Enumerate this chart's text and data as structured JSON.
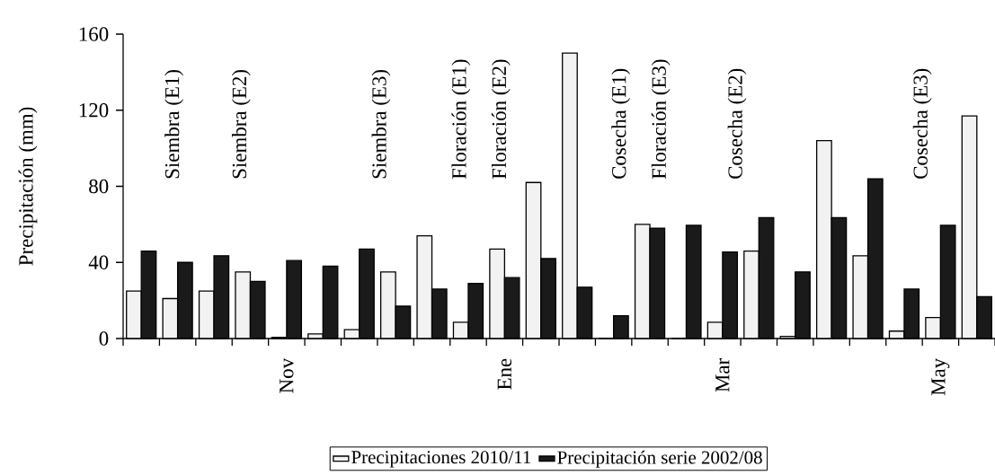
{
  "chart_data": {
    "type": "bar",
    "ylabel": "Precipitación (mm)",
    "categories": [
      null,
      null,
      null,
      null,
      "Nov",
      null,
      null,
      null,
      null,
      null,
      "Ene",
      null,
      null,
      null,
      null,
      null,
      "Mar",
      null,
      null,
      null,
      null,
      null,
      "May",
      null
    ],
    "series": [
      {
        "name": "Precipitaciones 2010/11",
        "color": "#f2f2f2",
        "values": [
          25,
          21,
          25,
          35,
          0.6,
          2.4,
          4.7,
          35,
          54,
          8.6,
          47,
          82,
          150,
          0,
          60,
          0,
          8.6,
          46,
          1.1,
          104,
          43.5,
          3.9,
          11,
          117
        ]
      },
      {
        "name": "Precipitación serie 2002/08",
        "color": "#1a1a1a",
        "values": [
          46,
          40,
          43.5,
          30,
          41,
          38,
          47,
          17,
          26,
          29,
          32,
          42,
          27,
          12,
          58,
          59.5,
          45.5,
          63.5,
          35,
          63.5,
          84,
          26,
          59.5,
          22
        ]
      }
    ],
    "ylim": [
      0,
      160
    ],
    "yticks": [
      0,
      40,
      80,
      120,
      160
    ],
    "grid": false,
    "legend": "bottom",
    "annotations": [
      "Siembra (E1)",
      "Siembra (E2)",
      "Siembra (E3)",
      "Floración (E1)",
      "Floración (E2)",
      "Cosecha (E1)",
      "Floración (E3)",
      "Cosecha (E2)",
      "Cosecha (E3)"
    ]
  }
}
